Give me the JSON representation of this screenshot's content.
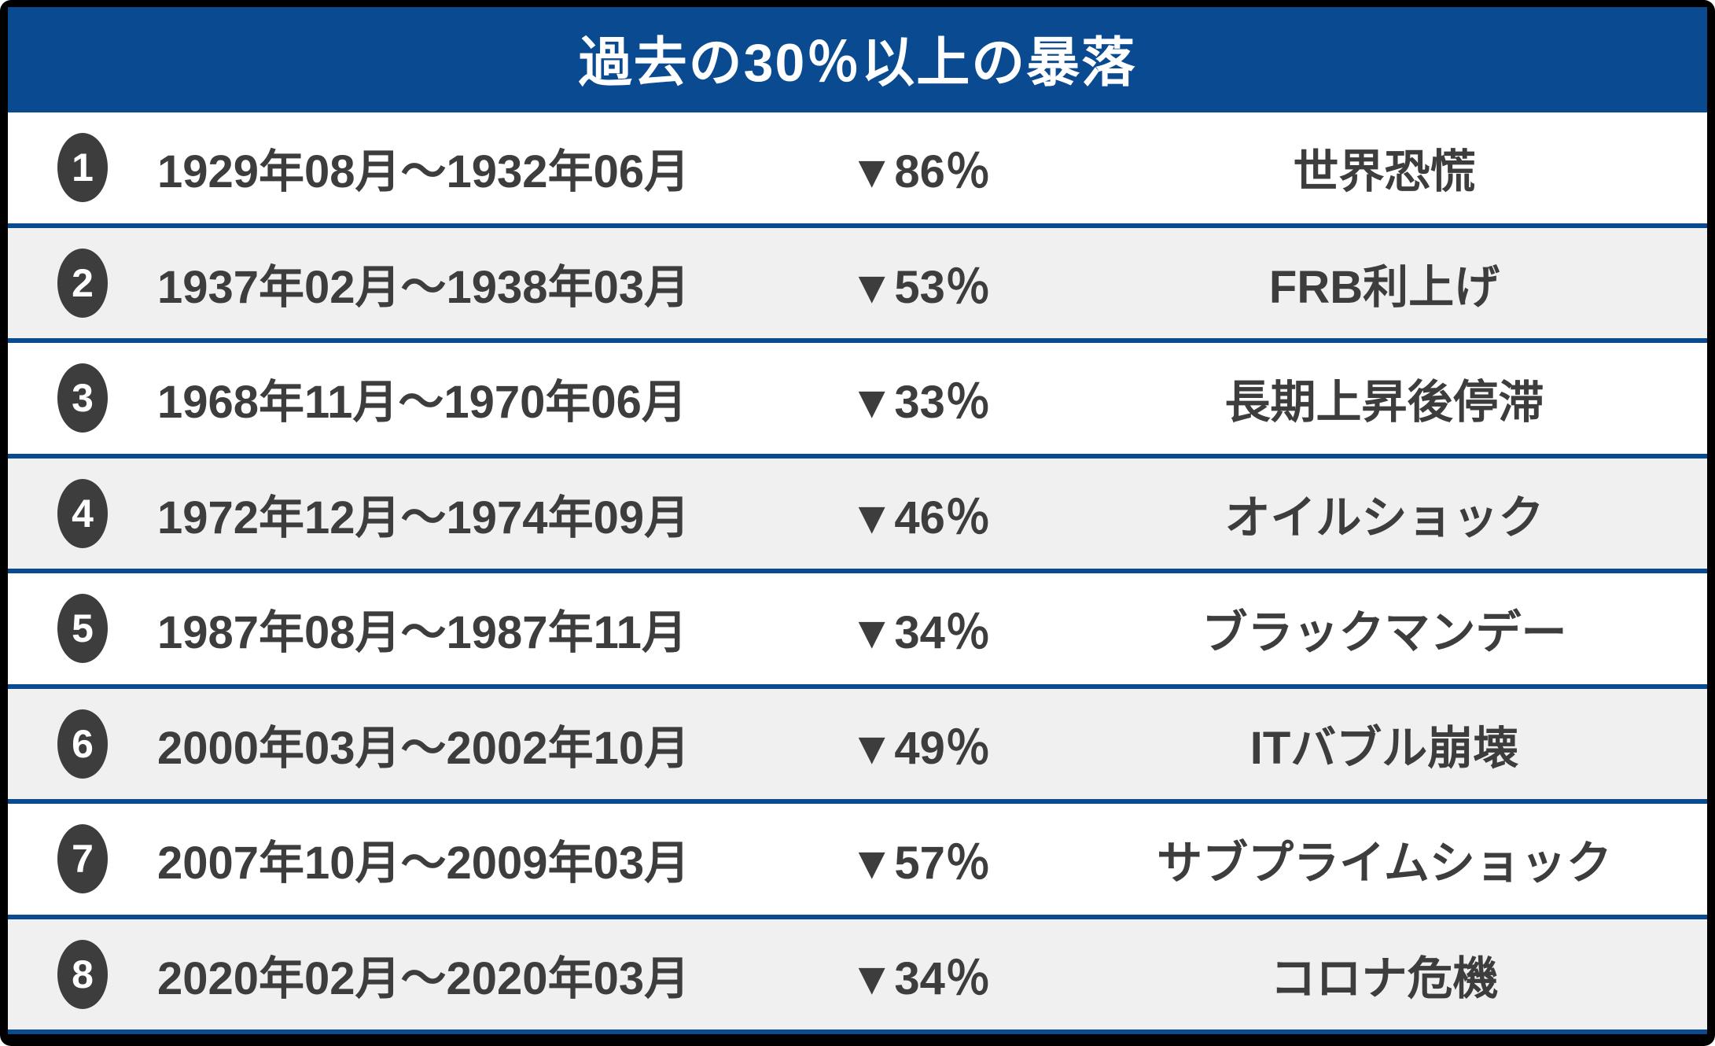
{
  "title": "過去の30％以上の暴落",
  "colors": {
    "header_bg": "#0a4a91",
    "divider": "#0a4a91",
    "row_bg": "#ffffff",
    "row_alt_bg": "#f0f0f0",
    "text": "#3d3d3d",
    "badge_bg": "#3d3d3d",
    "outer_border": "#000000",
    "title_text": "#ffffff"
  },
  "icons": {
    "drop_marker": "▼"
  },
  "chart_data": {
    "type": "table",
    "title": "過去の30％以上の暴落",
    "rows": [
      {
        "num": "1",
        "period": "1929年08月〜1932年06月",
        "drop_percent": 86,
        "drop": "▼86％",
        "cause": "世界恐慌"
      },
      {
        "num": "2",
        "period": "1937年02月〜1938年03月",
        "drop_percent": 53,
        "drop": "▼53％",
        "cause": "FRB利上げ"
      },
      {
        "num": "3",
        "period": "1968年11月〜1970年06月",
        "drop_percent": 33,
        "drop": "▼33％",
        "cause": "長期上昇後停滞"
      },
      {
        "num": "4",
        "period": "1972年12月〜1974年09月",
        "drop_percent": 46,
        "drop": "▼46％",
        "cause": "オイルショック"
      },
      {
        "num": "5",
        "period": "1987年08月〜1987年11月",
        "drop_percent": 34,
        "drop": "▼34％",
        "cause": "ブラックマンデー"
      },
      {
        "num": "6",
        "period": "2000年03月〜2002年10月",
        "drop_percent": 49,
        "drop": "▼49％",
        "cause": "ITバブル崩壊"
      },
      {
        "num": "7",
        "period": "2007年10月〜2009年03月",
        "drop_percent": 57,
        "drop": "▼57％",
        "cause": "サブプライムショック"
      },
      {
        "num": "8",
        "period": "2020年02月〜2020年03月",
        "drop_percent": 34,
        "drop": "▼34％",
        "cause": "コロナ危機"
      }
    ]
  }
}
